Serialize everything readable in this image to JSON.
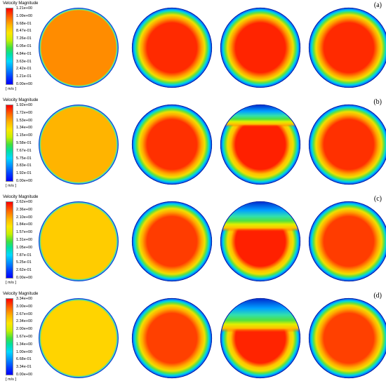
{
  "panels": [
    {
      "label": "(a)",
      "legend_title": "Velocity Magnitude",
      "unit": "[ m/s ]",
      "ticks": [
        "1.21e+00",
        "1.09e+00",
        "9.68e-01",
        "8.47e-01",
        "7.26e-01",
        "6.05e-01",
        "4.84e-01",
        "3.63e-01",
        "2.42e-01",
        "1.21e-01",
        "0.00e+00"
      ],
      "first_color": "#ff8c00",
      "cores": [
        {
          "core": "#ff2a00",
          "mid": "#ffa000",
          "top_cut": 0
        },
        {
          "core": "#ff2400",
          "mid": "#ffa000",
          "top_cut": 0
        },
        {
          "core": "#ff2a00",
          "mid": "#ffa000",
          "top_cut": 0
        }
      ]
    },
    {
      "label": "(b)",
      "legend_title": "Velocity Magnitude",
      "unit": "[ m/s ]",
      "ticks": [
        "1.92e+00",
        "1.72e+00",
        "1.53e+00",
        "1.34e+00",
        "1.15e+00",
        "9.58e-01",
        "7.67e-01",
        "5.75e-01",
        "3.83e-01",
        "1.92e-01",
        "0.00e+00"
      ],
      "first_color": "#ffb400",
      "cores": [
        {
          "core": "#ff3000",
          "mid": "#ffa800",
          "top_cut": 0
        },
        {
          "core": "#ff2000",
          "mid": "#ffc000",
          "top_cut": 0.22
        },
        {
          "core": "#ff3000",
          "mid": "#ffa800",
          "top_cut": 0
        }
      ]
    },
    {
      "label": "(c)",
      "legend_title": "Velocity Magnitude",
      "unit": "[ m/s ]",
      "ticks": [
        "2.62e+00",
        "2.36e+00",
        "2.10e+00",
        "1.84e+00",
        "1.57e+00",
        "1.31e+00",
        "1.05e+00",
        "7.87e-01",
        "5.25e-01",
        "2.62e-01",
        "0.00e+00"
      ],
      "first_color": "#ffcc00",
      "cores": [
        {
          "core": "#ff3c00",
          "mid": "#ffa800",
          "top_cut": 0
        },
        {
          "core": "#ff2000",
          "mid": "#ffc000",
          "top_cut": 0.3
        },
        {
          "core": "#ff3c00",
          "mid": "#ffa800",
          "top_cut": 0
        }
      ]
    },
    {
      "label": "(d)",
      "legend_title": "Velocity Magnitude",
      "unit": "[ m/s ]",
      "ticks": [
        "3.34e+00",
        "3.00e+00",
        "2.67e+00",
        "2.34e+00",
        "2.00e+00",
        "1.67e+00",
        "1.34e+00",
        "1.00e+00",
        "6.68e-01",
        "3.34e-01",
        "0.00e+00"
      ],
      "first_color": "#ffd400",
      "cores": [
        {
          "core": "#ff4000",
          "mid": "#ffac00",
          "top_cut": 0
        },
        {
          "core": "#ff2400",
          "mid": "#ffc400",
          "top_cut": 0.34
        },
        {
          "core": "#ff4000",
          "mid": "#ffac00",
          "top_cut": 0
        }
      ]
    }
  ]
}
